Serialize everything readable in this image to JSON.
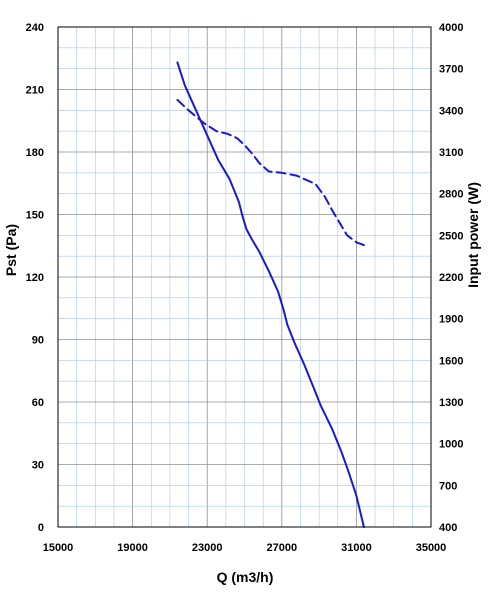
{
  "chart_data": {
    "type": "line",
    "xlabel": "Q (m3/h)",
    "ylabel": "Pst (Pa)",
    "y2label": "Input power  (W)",
    "xlim": [
      15000,
      35000
    ],
    "ylim": [
      0,
      240
    ],
    "y2lim": [
      400,
      4000
    ],
    "x_ticks": [
      "15000",
      "19000",
      "23000",
      "27000",
      "31000",
      "35000"
    ],
    "y_ticks": [
      "0",
      "30",
      "60",
      "90",
      "120",
      "150",
      "180",
      "210",
      "240"
    ],
    "y2_ticks": [
      "400",
      "700",
      "1000",
      "1300",
      "1600",
      "1900",
      "2200",
      "2500",
      "2800",
      "3100",
      "3400",
      "3700",
      "4000"
    ],
    "grid": true,
    "series": [
      {
        "axis": "left",
        "style": "solid",
        "color": "#1a1acc",
        "x": [
          21400,
          21800,
          22400,
          23000,
          23600,
          24200,
          24700,
          24900,
          25100,
          25400,
          25800,
          26300,
          26800,
          27100,
          27300,
          27700,
          28200,
          28700,
          29100,
          29700,
          30200,
          30600,
          31000,
          31400
        ],
        "y": [
          223,
          212,
          200,
          188,
          176,
          167,
          156,
          149,
          143,
          138,
          132,
          123,
          113,
          104,
          97,
          88,
          78,
          67,
          58,
          47,
          36,
          26,
          15,
          0
        ]
      },
      {
        "axis": "right",
        "style": "dashed",
        "color": "#1a1acc",
        "x": [
          21400,
          22000,
          22800,
          23500,
          24100,
          24600,
          25000,
          25400,
          25800,
          26300,
          27000,
          27800,
          28300,
          28800,
          29300,
          29700,
          30100,
          30500,
          31000,
          31400
        ],
        "y": [
          3475,
          3400,
          3310,
          3250,
          3230,
          3200,
          3150,
          3090,
          3020,
          2960,
          2950,
          2930,
          2900,
          2870,
          2780,
          2680,
          2590,
          2500,
          2450,
          2430
        ]
      }
    ]
  }
}
